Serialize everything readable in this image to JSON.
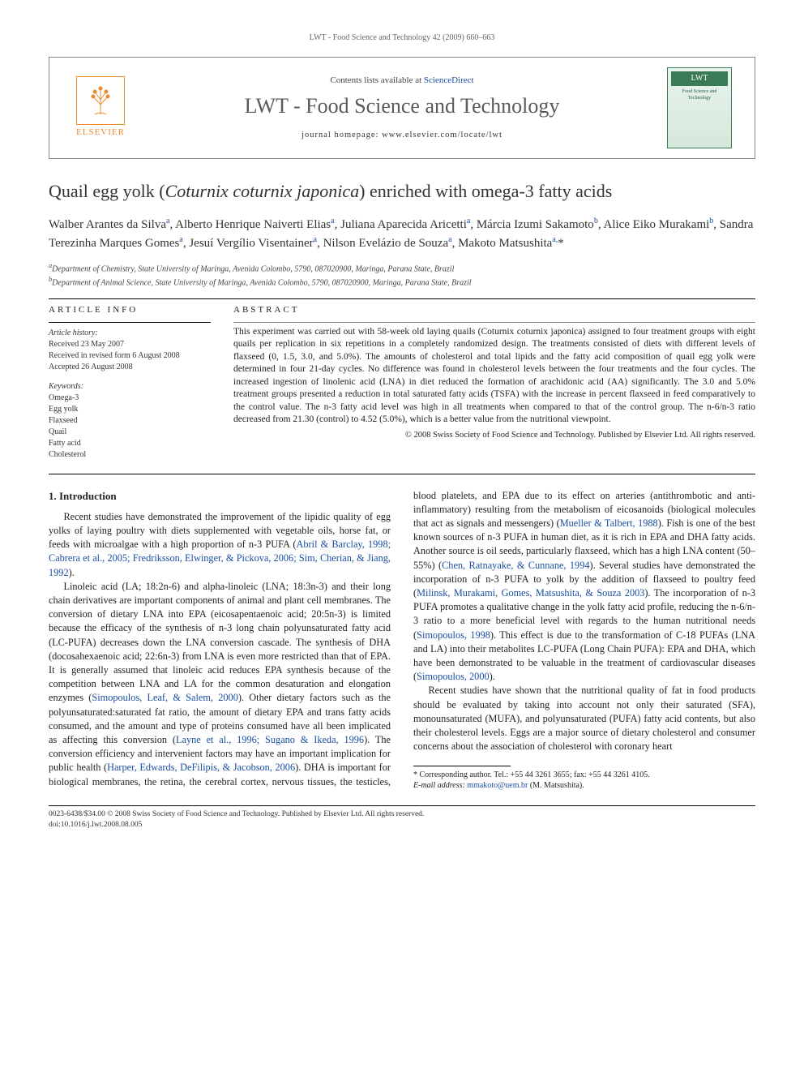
{
  "running_head": "LWT - Food Science and Technology 42 (2009) 660–663",
  "masthead": {
    "contents_prefix": "Contents lists available at ",
    "contents_link": "ScienceDirect",
    "journal": "LWT - Food Science and Technology",
    "homepage_prefix": "journal homepage: ",
    "homepage_url": "www.elsevier.com/locate/lwt",
    "elsevier": "ELSEVIER",
    "cover_abbrev": "LWT",
    "cover_sub": "Food Science and Technology"
  },
  "title_pre": "Quail egg yolk (",
  "title_ital": "Coturnix coturnix japonica",
  "title_post": ") enriched with omega-3 fatty acids",
  "authors_html": "Walber Arantes da Silva<sup>a</sup>, Alberto Henrique Naiverti Elias<sup>a</sup>, Juliana Aparecida Aricetti<sup>a</sup>, Márcia Izumi Sakamoto<sup>b</sup>, Alice Eiko Murakami<sup>b</sup>, Sandra Terezinha Marques Gomes<sup>a</sup>, Jesuí Vergílio Visentainer<sup>a</sup>, Nilson Evelázio de Souza<sup>a</sup>, Makoto Matsushita<sup>a,</sup>*",
  "affiliations": {
    "a": "Department of Chemistry, State University of Maringa, Avenida Colombo, 5790, 087020900, Maringa, Parana State, Brazil",
    "b": "Department of Animal Science, State University of Maringa, Avenida Colombo, 5790, 087020900, Maringa, Parana State, Brazil"
  },
  "info": {
    "head": "ARTICLE INFO",
    "history_label": "Article history:",
    "received": "Received 23 May 2007",
    "revised": "Received in revised form 6 August 2008",
    "accepted": "Accepted 26 August 2008",
    "keywords_label": "Keywords:",
    "keywords": [
      "Omega-3",
      "Egg yolk",
      "Flaxseed",
      "Quail",
      "Fatty acid",
      "Cholesterol"
    ]
  },
  "abstract": {
    "head": "ABSTRACT",
    "text": "This experiment was carried out with 58-week old laying quails (Coturnix coturnix japonica) assigned to four treatment groups with eight quails per replication in six repetitions in a completely randomized design. The treatments consisted of diets with different levels of flaxseed (0, 1.5, 3.0, and 5.0%). The amounts of cholesterol and total lipids and the fatty acid composition of quail egg yolk were determined in four 21-day cycles. No difference was found in cholesterol levels between the four treatments and the four cycles. The increased ingestion of linolenic acid (LNA) in diet reduced the formation of arachidonic acid (AA) significantly. The 3.0 and 5.0% treatment groups presented a reduction in total saturated fatty acids (TSFA) with the increase in percent flaxseed in feed comparatively to the control value. The n-3 fatty acid level was high in all treatments when compared to that of the control group. The n-6/n-3 ratio decreased from 21.30 (control) to 4.52 (5.0%), which is a better value from the nutritional viewpoint.",
    "copyright": "© 2008 Swiss Society of Food Science and Technology. Published by Elsevier Ltd. All rights reserved."
  },
  "section1": {
    "heading": "1. Introduction",
    "p1_a": "Recent studies have demonstrated the improvement of the lipidic quality of egg yolks of laying poultry with diets supplemented with vegetable oils, horse fat, or feeds with microalgae with a high proportion of n-3 PUFA (",
    "p1_ref": "Abril & Barclay, 1998; Cabrera et al., 2005; Fredriksson, Elwinger, & Pickova, 2006; Sim, Cherian, & Jiang, 1992",
    "p1_b": ").",
    "p2_a": "Linoleic acid (LA; 18:2n-6) and alpha-linoleic (LNA; 18:3n-3) and their long chain derivatives are important components of animal and plant cell membranes. The conversion of dietary LNA into EPA (eicosapentaenoic acid; 20:5n-3) is limited because the efficacy of the synthesis of n-3 long chain polyunsaturated fatty acid (LC-PUFA) decreases down the LNA conversion cascade. The synthesis of DHA (docosahexaenoic acid; 22:6n-3) from LNA is even more restricted than that of EPA. It is generally assumed that linoleic acid reduces EPA synthesis because of the competition between LNA and LA for the common desaturation and elongation enzymes (",
    "p2_ref1": "Simopoulos, Leaf, & Salem, 2000",
    "p2_b": "). Other dietary factors such as the polyunsaturated:saturated fat ratio, the amount of dietary EPA and trans fatty acids consumed, and the amount and type of proteins consumed have all been implicated as affecting this conversion (",
    "p2_ref2": "Layne et al., 1996; Sugano & Ikeda, 1996",
    "p2_c": "). The conversion efficiency and intervenient factors may have an important implication for public health (",
    "p2_ref3": "Harper, Edwards, DeFilipis, & Jacobson, 2006",
    "p2_d": "). DHA is important for biological membranes, the retina, the cerebral cortex, nervous tissues, the testicles, blood platelets, and EPA due to its effect on arteries (antithrombotic and anti-inflammatory) resulting from the metabolism of eicosanoids (biological molecules that act as signals and messengers) (",
    "p2_ref4": "Mueller & Talbert, 1988",
    "p2_e": "). Fish is one of the best known sources of n-3 PUFA in human diet, as it is rich in EPA and DHA fatty acids. Another source is oil seeds, particularly flaxseed, which has a high LNA content (50–55%) (",
    "p2_ref5": "Chen, Ratnayake, & Cunnane, 1994",
    "p2_f": "). Several studies have demonstrated the incorporation of n-3 PUFA to yolk by the addition of flaxseed to poultry feed (",
    "p2_ref6": "Milinsk, Murakami, Gomes, Matsushita, & Souza 2003",
    "p2_g": "). The incorporation of n-3 PUFA promotes a qualitative change in the yolk fatty acid profile, reducing the n-6/n-3 ratio to a more beneficial level with regards to the human nutritional needs (",
    "p2_ref7": "Simopoulos, 1998",
    "p2_h": "). This effect is due to the transformation of C-18 PUFAs (LNA and LA) into their metabolites LC-PUFA (Long Chain PUFA): EPA and DHA, which have been demonstrated to be valuable in the treatment of cardiovascular diseases (",
    "p2_ref8": "Simopoulos, 2000",
    "p2_i": ").",
    "p3": "Recent studies have shown that the nutritional quality of fat in food products should be evaluated by taking into account not only their saturated (SFA), monounsaturated (MUFA), and polyunsaturated (PUFA) fatty acid contents, but also their cholesterol levels. Eggs are a major source of dietary cholesterol and consumer concerns about the association of cholesterol with coronary heart"
  },
  "footnote": {
    "corr": "* Corresponding author. Tel.: +55 44 3261 3655; fax: +55 44 3261 4105.",
    "email_label": "E-mail address:",
    "email": "mmakoto@uem.br",
    "email_suffix": "(M. Matsushita)."
  },
  "footer": {
    "left": "0023-6438/$34.00 © 2008 Swiss Society of Food Science and Technology. Published by Elsevier Ltd. All rights reserved.",
    "doi": "doi:10.1016/j.lwt.2008.08.005"
  },
  "colors": {
    "link": "#1a4fa3",
    "elsevier": "#e98b2c",
    "cover": "#3a7a56"
  }
}
